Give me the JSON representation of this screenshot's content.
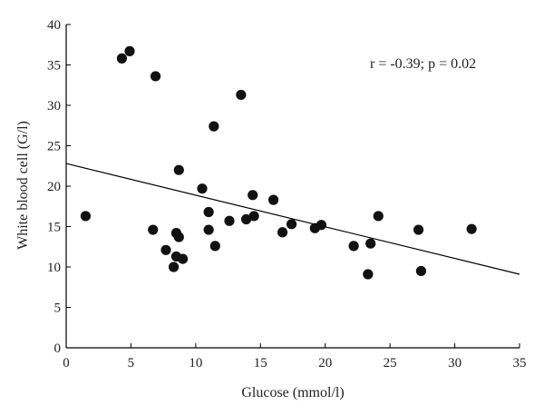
{
  "chart_data": {
    "type": "scatter",
    "title": "",
    "xlabel": "Glucose (mmol/l)",
    "ylabel": "White blood cell (G/l)",
    "xlim": [
      0,
      35
    ],
    "ylim": [
      0,
      40
    ],
    "xticks": [
      0,
      5,
      10,
      15,
      20,
      25,
      30,
      35
    ],
    "yticks": [
      0,
      5,
      10,
      15,
      20,
      25,
      30,
      35,
      40
    ],
    "grid": false,
    "legend": "none",
    "annotation": "r = -0.39; p = 0.02",
    "trendline": {
      "x": [
        0,
        35
      ],
      "y": [
        22.8,
        9.1
      ]
    },
    "series": [
      {
        "points": [
          [
            1.5,
            16.3
          ],
          [
            4.3,
            35.8
          ],
          [
            4.9,
            36.7
          ],
          [
            6.9,
            33.6
          ],
          [
            6.7,
            14.6
          ],
          [
            7.7,
            12.1
          ],
          [
            8.3,
            10.0
          ],
          [
            8.5,
            14.2
          ],
          [
            8.5,
            11.3
          ],
          [
            8.7,
            13.7
          ],
          [
            8.7,
            22.0
          ],
          [
            9.0,
            11.0
          ],
          [
            10.5,
            19.7
          ],
          [
            11.0,
            16.8
          ],
          [
            11.0,
            14.6
          ],
          [
            11.4,
            27.4
          ],
          [
            11.5,
            12.6
          ],
          [
            12.6,
            15.7
          ],
          [
            13.5,
            31.3
          ],
          [
            13.9,
            15.9
          ],
          [
            14.4,
            18.9
          ],
          [
            14.5,
            16.3
          ],
          [
            16.0,
            18.3
          ],
          [
            16.7,
            14.3
          ],
          [
            17.4,
            15.3
          ],
          [
            19.2,
            14.8
          ],
          [
            19.7,
            15.2
          ],
          [
            22.2,
            12.6
          ],
          [
            23.3,
            9.1
          ],
          [
            23.5,
            12.9
          ],
          [
            24.1,
            16.3
          ],
          [
            27.2,
            14.6
          ],
          [
            27.4,
            9.5
          ],
          [
            31.3,
            14.7
          ]
        ]
      }
    ]
  }
}
